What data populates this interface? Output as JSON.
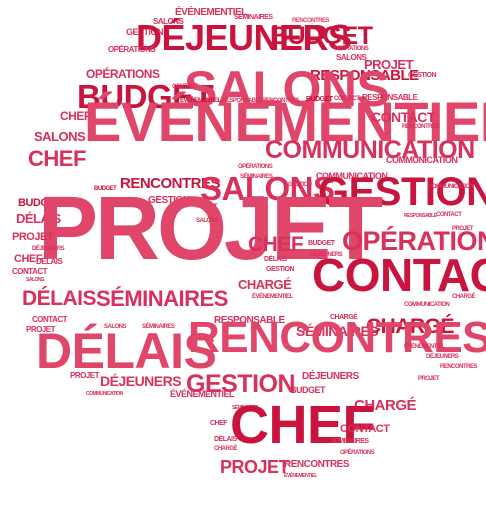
{
  "cloud": {
    "words": [
      {
        "text": "SALONS",
        "color": "#d8315b"
      },
      {
        "text": "ÉVÉNEMENTIEL",
        "color": "#d8315b"
      },
      {
        "text": "SÉMINAIRES",
        "color": "#d8315b"
      },
      {
        "text": "RENCONTRES",
        "color": "#e0466a"
      },
      {
        "text": "GESTION",
        "color": "#d8315b"
      },
      {
        "text": "DÉJEUNERS",
        "color": "#c9153e"
      },
      {
        "text": "BUDGET",
        "color": "#c9153e"
      },
      {
        "text": "OPÉRATIONS",
        "color": "#d8315b"
      },
      {
        "text": "OPÉRATIONS",
        "color": "#d8315b"
      },
      {
        "text": "SALONS",
        "color": "#d8315b"
      },
      {
        "text": "PROJET",
        "color": "#d8315b"
      },
      {
        "text": "RESPONSABLE",
        "color": "#c9153e"
      },
      {
        "text": "GESTION",
        "color": "#d8315b"
      },
      {
        "text": "BUDGET",
        "color": "#c9153e"
      },
      {
        "text": "ÉVÉNEMENTIEL",
        "color": "#e0466a"
      },
      {
        "text": "RESPONSABLE",
        "color": "#d8315b"
      },
      {
        "text": "RENCONTRES",
        "color": "#d8315b"
      },
      {
        "text": "CONTACT",
        "color": "#d8315b"
      },
      {
        "text": "BUDGET",
        "color": "#c9153e"
      },
      {
        "text": "CONTACT",
        "color": "#d8315b"
      },
      {
        "text": "RESPONSABLE",
        "color": "#d8315b"
      },
      {
        "text": "CHEF",
        "color": "#e0466a"
      },
      {
        "text": "ÉVÉNEMENTIEL",
        "color": "#d8315b"
      },
      {
        "text": "CONTACT",
        "color": "#d8315b"
      },
      {
        "text": "RENCONTRES",
        "color": "#d8315b"
      },
      {
        "text": "SALONS",
        "color": "#d8315b"
      },
      {
        "text": "COMMUNICATION",
        "color": "#d8315b"
      },
      {
        "text": "COMMUNICATION",
        "color": "#d8315b"
      },
      {
        "text": "CHEF",
        "color": "#d8315b"
      },
      {
        "text": "OPÉRATIONS",
        "color": "#d8315b"
      },
      {
        "text": "SÉMINAIRES",
        "color": "#d8315b"
      },
      {
        "text": "COMMUNICATION",
        "color": "#d8315b"
      },
      {
        "text": "BUDGET",
        "color": "#c9153e"
      },
      {
        "text": "RENCONTRES",
        "color": "#c9153e"
      },
      {
        "text": "SALONS",
        "color": "#d8315b"
      },
      {
        "text": "GESTION",
        "color": "#c9153e"
      },
      {
        "text": "BUDGET",
        "color": "#c9153e"
      },
      {
        "text": "GESTION",
        "color": "#d8315b"
      },
      {
        "text": "RESPONSABLE",
        "color": "#d8315b"
      },
      {
        "text": "CONTACT",
        "color": "#d8315b"
      },
      {
        "text": "DÉLAIS",
        "color": "#d8315b"
      },
      {
        "text": "PROJET",
        "color": "#d8315b"
      },
      {
        "text": "PROJET",
        "color": "#e0466a"
      },
      {
        "text": "CHEF",
        "color": "#d8315b"
      },
      {
        "text": "BUDGET",
        "color": "#d8315b"
      },
      {
        "text": "OPÉRATIONS",
        "color": "#d8315b"
      },
      {
        "text": "PROJET",
        "color": "#d8315b"
      },
      {
        "text": "DÉJEUNERS",
        "color": "#d8315b"
      },
      {
        "text": "CHEF",
        "color": "#d8315b"
      },
      {
        "text": "DÉLAIS",
        "color": "#d8315b"
      },
      {
        "text": "DÉJEUNERS",
        "color": "#d8315b"
      },
      {
        "text": "CONTACT",
        "color": "#d8315b"
      },
      {
        "text": "SALONS",
        "color": "#d8315b"
      },
      {
        "text": "GESTION",
        "color": "#d8315b"
      },
      {
        "text": "CONTACT",
        "color": "#c9153e"
      },
      {
        "text": "CHARGÉ",
        "color": "#d8315b"
      },
      {
        "text": "ÉVÉNEMENTIEL",
        "color": "#d8315b"
      },
      {
        "text": "COMMUNICATION",
        "color": "#d8315b"
      },
      {
        "text": "CHARGÉ",
        "color": "#d8315b"
      },
      {
        "text": "DÉLAIS",
        "color": "#d8315b"
      },
      {
        "text": "SÉMINAIRES",
        "color": "#d8315b"
      },
      {
        "text": "CONTACT",
        "color": "#d8315b"
      },
      {
        "text": "RESPONSABLE",
        "color": "#d8315b"
      },
      {
        "text": "CHARGÉ",
        "color": "#d8315b"
      },
      {
        "text": "PROJET",
        "color": "#d8315b"
      },
      {
        "text": "SÉMINAIRES",
        "color": "#d8315b"
      },
      {
        "text": "CHARGÉ",
        "color": "#c9153e"
      },
      {
        "text": "SALONS",
        "color": "#d8315b"
      },
      {
        "text": "SÉMINAIRES",
        "color": "#d8315b"
      },
      {
        "text": "DÉLAIS",
        "color": "#d8315b"
      },
      {
        "text": "DÉJEUNERS",
        "color": "#d8315b"
      },
      {
        "text": "RENCONTRES",
        "color": "#d8315b"
      },
      {
        "text": "ÉVÉNEMENTIEL",
        "color": "#d8315b"
      },
      {
        "text": "PROJET",
        "color": "#d8315b"
      },
      {
        "text": "COMMUNICATION",
        "color": "#d8315b"
      },
      {
        "text": "SALONS",
        "color": "#d8315b"
      },
      {
        "text": "DÉJEUNERS",
        "color": "#d8315b"
      },
      {
        "text": "DÉJEUNERS",
        "color": "#d8315b"
      },
      {
        "text": "PROJET",
        "color": "#d8315b"
      },
      {
        "text": "COMMUNICATION",
        "color": "#d8315b"
      },
      {
        "text": "ÉVÉNEMENTIEL",
        "color": "#d8315b"
      },
      {
        "text": "GESTION",
        "color": "#d8315b"
      },
      {
        "text": "SÉMINAIRES",
        "color": "#d8315b"
      },
      {
        "text": "BUDGET",
        "color": "#d8315b"
      },
      {
        "text": "CHARGÉ",
        "color": "#d8315b"
      },
      {
        "text": "CHEF",
        "color": "#d8315b"
      },
      {
        "text": "CHEF",
        "color": "#c9153e"
      },
      {
        "text": "DÉLAIS",
        "color": "#d8315b"
      },
      {
        "text": "CONTACT",
        "color": "#d8315b"
      },
      {
        "text": "SÉMINAIRES",
        "color": "#d8315b"
      },
      {
        "text": "CHARGÉ",
        "color": "#d8315b"
      },
      {
        "text": "OPÉRATIONS",
        "color": "#d8315b"
      },
      {
        "text": "PROJET",
        "color": "#d8315b"
      },
      {
        "text": "RENCONTRES",
        "color": "#d8315b"
      },
      {
        "text": "ÉVÉNEMENTIEL",
        "color": "#d8315b"
      }
    ]
  }
}
